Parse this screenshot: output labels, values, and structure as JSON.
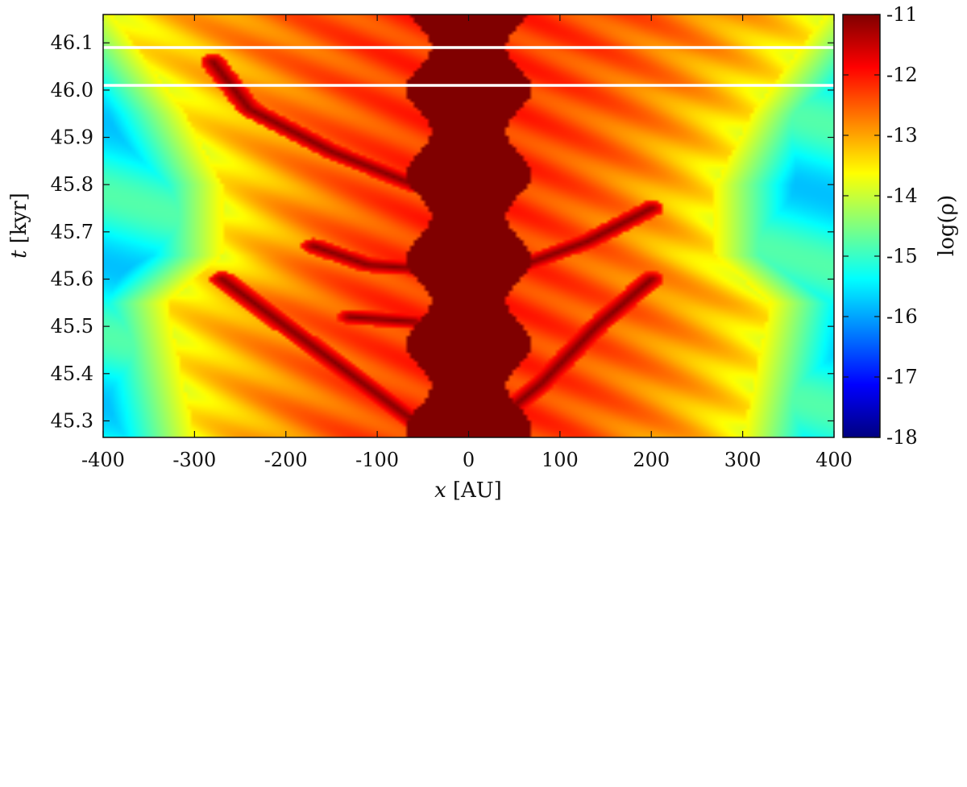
{
  "chart_data": {
    "type": "heatmap",
    "xlabel_var": "x",
    "xlabel_unit": "[AU]",
    "ylabel_var": "t",
    "ylabel_unit": "[kyr]",
    "colorbar_label": "log(ρ)",
    "colormap": "jet",
    "xlim": [
      -400,
      400
    ],
    "ylim": [
      45.265,
      46.16
    ],
    "x_ticks": [
      -400,
      -300,
      -200,
      -100,
      0,
      100,
      200,
      300,
      400
    ],
    "y_ticks": [
      45.3,
      45.4,
      45.5,
      45.6,
      45.7,
      45.8,
      45.9,
      46.0,
      46.1
    ],
    "y_tick_labels": [
      "45.3",
      "45.4",
      "45.5",
      "45.6",
      "45.7",
      "45.8",
      "45.9",
      "46.0",
      "46.1"
    ],
    "colorbar_range": [
      -18,
      -11
    ],
    "colorbar_ticks": [
      -11,
      -12,
      -13,
      -14,
      -15,
      -16,
      -17,
      -18
    ],
    "horizontal_lines": [
      46.09,
      46.01
    ],
    "horizontal_line_color": "#ffffff",
    "grid": false,
    "density_features": {
      "background_log_rho": -15.3,
      "core": {
        "half_width_au": 55,
        "log_rho": -11
      },
      "envelope": [
        {
          "t": 45.265,
          "half_width_au": 300
        },
        {
          "t": 45.55,
          "half_width_au": 330
        },
        {
          "t": 45.65,
          "half_width_au": 270
        },
        {
          "t": 45.8,
          "half_width_au": 270
        },
        {
          "t": 45.95,
          "half_width_au": 310
        },
        {
          "t": 46.16,
          "half_width_au": 390
        }
      ],
      "dense_streaks": [
        {
          "points": [
            [
              -280,
              46.06
            ],
            [
              -240,
              45.96
            ],
            [
              -150,
              45.87
            ],
            [
              -60,
              45.8
            ]
          ]
        },
        {
          "points": [
            [
              -270,
              45.6
            ],
            [
              -200,
              45.5
            ],
            [
              -130,
              45.4
            ],
            [
              -60,
              45.3
            ]
          ]
        },
        {
          "points": [
            [
              -170,
              45.67
            ],
            [
              -110,
              45.63
            ],
            [
              -40,
              45.62
            ]
          ]
        },
        {
          "points": [
            [
              60,
              45.63
            ],
            [
              130,
              45.68
            ],
            [
              200,
              45.75
            ]
          ]
        },
        {
          "points": [
            [
              200,
              45.6
            ],
            [
              140,
              45.5
            ],
            [
              80,
              45.38
            ],
            [
              30,
              45.3
            ]
          ]
        },
        {
          "points": [
            [
              -130,
              45.52
            ],
            [
              -60,
              45.51
            ]
          ]
        }
      ]
    }
  }
}
